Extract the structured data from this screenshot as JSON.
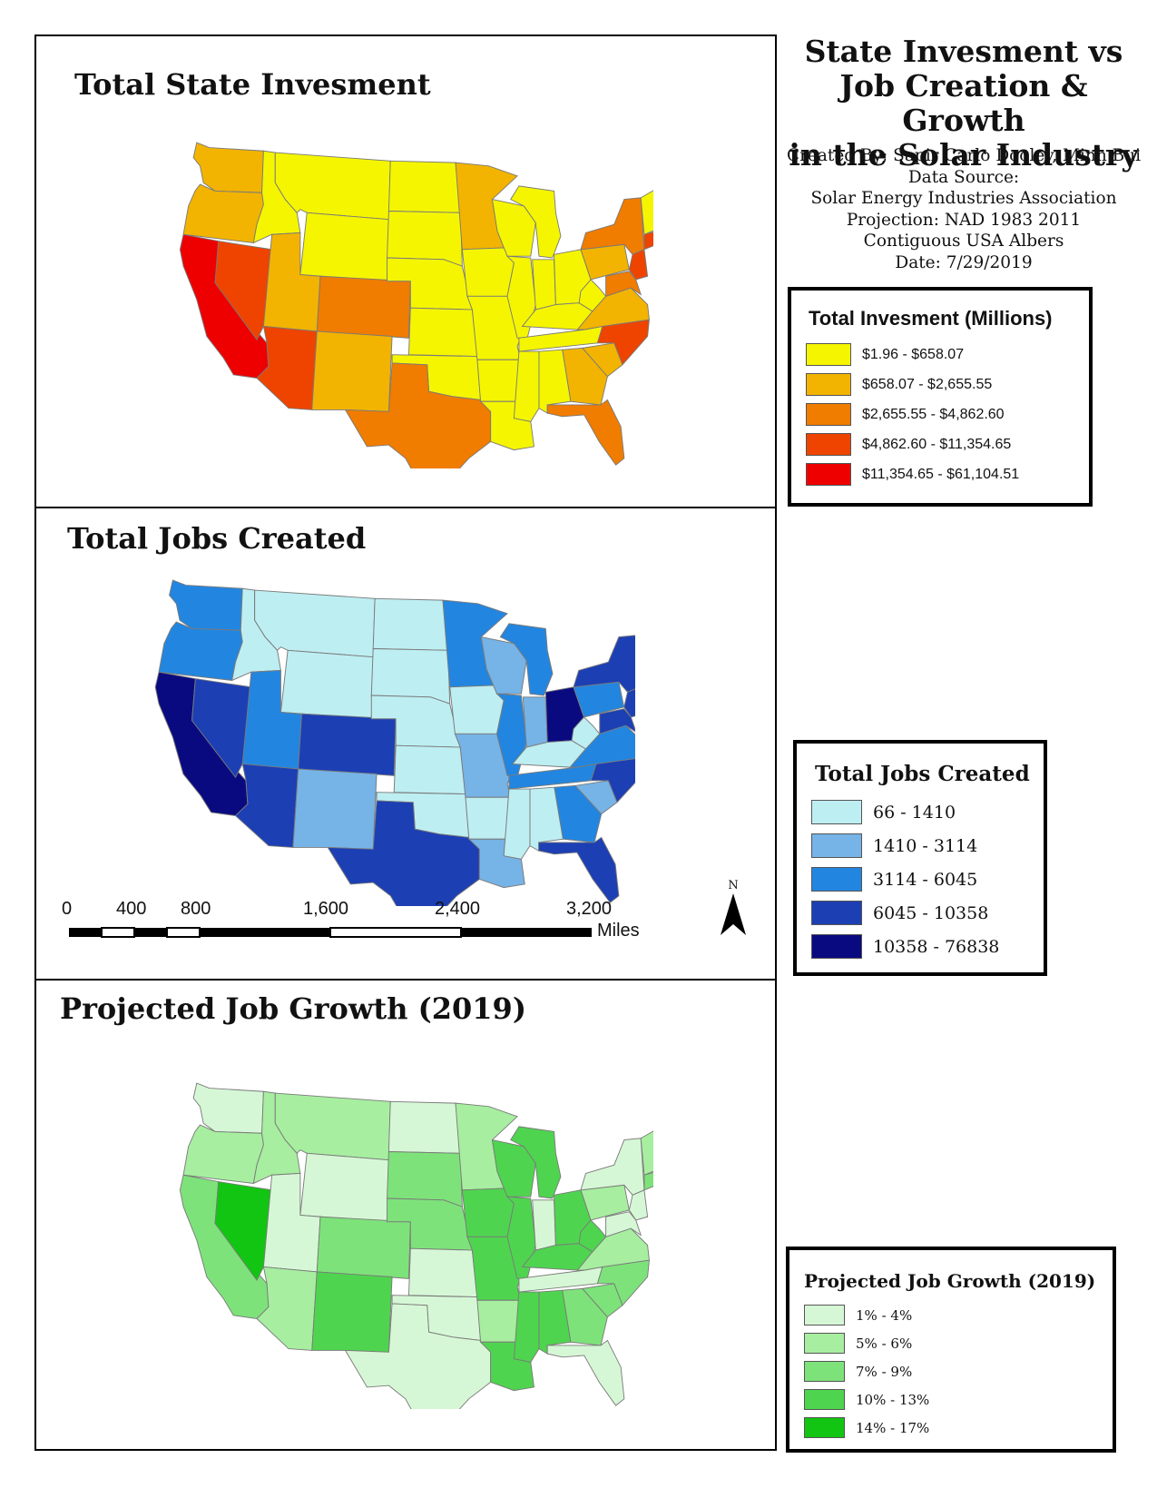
{
  "main_title": {
    "line1": "State Invesment vs",
    "line2": "Job Creation & Growth",
    "line3": "in the Solar Industry"
  },
  "meta": {
    "created_by": "Created By; Sapir Carlo Dooley, Minh Bui",
    "data_source_label": "Data Source:",
    "data_source": "Solar Energy Industries Association",
    "projection": "Projection: NAD 1983 2011",
    "projection_2": "Contiguous USA Albers",
    "date": "Date: 7/29/2019"
  },
  "panels": {
    "investment": {
      "title": "Total State Invesment"
    },
    "jobs": {
      "title": "Total Jobs Created"
    },
    "growth": {
      "title": "Projected Job Growth (2019)"
    }
  },
  "legends": {
    "investment": {
      "title": "Total Invesment (Millions)",
      "items": [
        {
          "label": "$1.96 - $658.07",
          "color": "#f5f500"
        },
        {
          "label": "$658.07 - $2,655.55",
          "color": "#f2b400"
        },
        {
          "label": "$2,655.55 - $4,862.60",
          "color": "#f07c00"
        },
        {
          "label": "$4,862.60 - $11,354.65",
          "color": "#ee4400"
        },
        {
          "label": "$11,354.65 - $61,104.51",
          "color": "#ee0000"
        }
      ]
    },
    "jobs": {
      "title": "Total Jobs Created",
      "items": [
        {
          "label": "66 - 1410",
          "color": "#bdeef2"
        },
        {
          "label": "1410 - 3114",
          "color": "#76b3e6"
        },
        {
          "label": "3114 - 6045",
          "color": "#2286e0"
        },
        {
          "label": "6045 - 10358",
          "color": "#1c3fb4"
        },
        {
          "label": "10358 - 76838",
          "color": "#0a0a80"
        }
      ]
    },
    "growth": {
      "title": "Projected Job Growth (2019)",
      "items": [
        {
          "label": "1% - 4%",
          "color": "#d6f7d6"
        },
        {
          "label": "5% - 6%",
          "color": "#a7eea0"
        },
        {
          "label": "7% - 9%",
          "color": "#7ee27a"
        },
        {
          "label": "10% - 13%",
          "color": "#4fd44f"
        },
        {
          "label": "14% - 17%",
          "color": "#12c512"
        }
      ]
    }
  },
  "scalebar": {
    "ticks": [
      "0",
      "400",
      "800",
      "1,600",
      "2,400",
      "3,200"
    ],
    "tick_values": [
      0,
      400,
      800,
      1600,
      2400,
      3200
    ],
    "unit": "Miles"
  },
  "north_arrow": {
    "letter": "N"
  },
  "states": [
    {
      "id": "WA",
      "inv": 1,
      "jobs": 2,
      "growth": 0
    },
    {
      "id": "OR",
      "inv": 1,
      "jobs": 2,
      "growth": 1
    },
    {
      "id": "CA",
      "inv": 4,
      "jobs": 4,
      "growth": 2
    },
    {
      "id": "NV",
      "inv": 3,
      "jobs": 3,
      "growth": 4
    },
    {
      "id": "ID",
      "inv": 0,
      "jobs": 0,
      "growth": 1
    },
    {
      "id": "MT",
      "inv": 0,
      "jobs": 0,
      "growth": 1
    },
    {
      "id": "WY",
      "inv": 0,
      "jobs": 0,
      "growth": 0
    },
    {
      "id": "UT",
      "inv": 1,
      "jobs": 2,
      "growth": 0
    },
    {
      "id": "AZ",
      "inv": 3,
      "jobs": 3,
      "growth": 1
    },
    {
      "id": "CO",
      "inv": 2,
      "jobs": 3,
      "growth": 2
    },
    {
      "id": "NM",
      "inv": 1,
      "jobs": 1,
      "growth": 3
    },
    {
      "id": "ND",
      "inv": 0,
      "jobs": 0,
      "growth": 0
    },
    {
      "id": "SD",
      "inv": 0,
      "jobs": 0,
      "growth": 2
    },
    {
      "id": "NE",
      "inv": 0,
      "jobs": 0,
      "growth": 2
    },
    {
      "id": "KS",
      "inv": 0,
      "jobs": 0,
      "growth": 0
    },
    {
      "id": "OK",
      "inv": 0,
      "jobs": 0,
      "growth": 0
    },
    {
      "id": "TX",
      "inv": 2,
      "jobs": 3,
      "growth": 0
    },
    {
      "id": "MN",
      "inv": 1,
      "jobs": 2,
      "growth": 1
    },
    {
      "id": "IA",
      "inv": 0,
      "jobs": 0,
      "growth": 3
    },
    {
      "id": "MO",
      "inv": 0,
      "jobs": 1,
      "growth": 3
    },
    {
      "id": "AR",
      "inv": 0,
      "jobs": 0,
      "growth": 1
    },
    {
      "id": "LA",
      "inv": 0,
      "jobs": 1,
      "growth": 3
    },
    {
      "id": "WI",
      "inv": 0,
      "jobs": 1,
      "growth": 3
    },
    {
      "id": "IL",
      "inv": 0,
      "jobs": 2,
      "growth": 3
    },
    {
      "id": "MI",
      "inv": 0,
      "jobs": 2,
      "growth": 3
    },
    {
      "id": "IN",
      "inv": 0,
      "jobs": 1,
      "growth": 0
    },
    {
      "id": "OH",
      "inv": 0,
      "jobs": 4,
      "growth": 3
    },
    {
      "id": "KY",
      "inv": 0,
      "jobs": 0,
      "growth": 3
    },
    {
      "id": "TN",
      "inv": 0,
      "jobs": 2,
      "growth": 0
    },
    {
      "id": "MS",
      "inv": 0,
      "jobs": 0,
      "growth": 3
    },
    {
      "id": "AL",
      "inv": 0,
      "jobs": 0,
      "growth": 3
    },
    {
      "id": "GA",
      "inv": 1,
      "jobs": 2,
      "growth": 2
    },
    {
      "id": "FL",
      "inv": 2,
      "jobs": 3,
      "growth": 0
    },
    {
      "id": "SC",
      "inv": 1,
      "jobs": 1,
      "growth": 2
    },
    {
      "id": "NC",
      "inv": 3,
      "jobs": 3,
      "growth": 2
    },
    {
      "id": "VA",
      "inv": 1,
      "jobs": 2,
      "growth": 1
    },
    {
      "id": "WV",
      "inv": 0,
      "jobs": 0,
      "growth": 3
    },
    {
      "id": "PA",
      "inv": 1,
      "jobs": 2,
      "growth": 1
    },
    {
      "id": "NY",
      "inv": 2,
      "jobs": 3,
      "growth": 0
    },
    {
      "id": "NE-US",
      "inv": 0,
      "jobs": 0,
      "growth": 1
    },
    {
      "id": "ME",
      "inv": 0,
      "jobs": 0,
      "growth": 2
    },
    {
      "id": "NJ",
      "inv": 3,
      "jobs": 3,
      "growth": 0
    },
    {
      "id": "MA",
      "inv": 3,
      "jobs": 3,
      "growth": 2
    },
    {
      "id": "MD",
      "inv": 2,
      "jobs": 3,
      "growth": 0
    }
  ]
}
